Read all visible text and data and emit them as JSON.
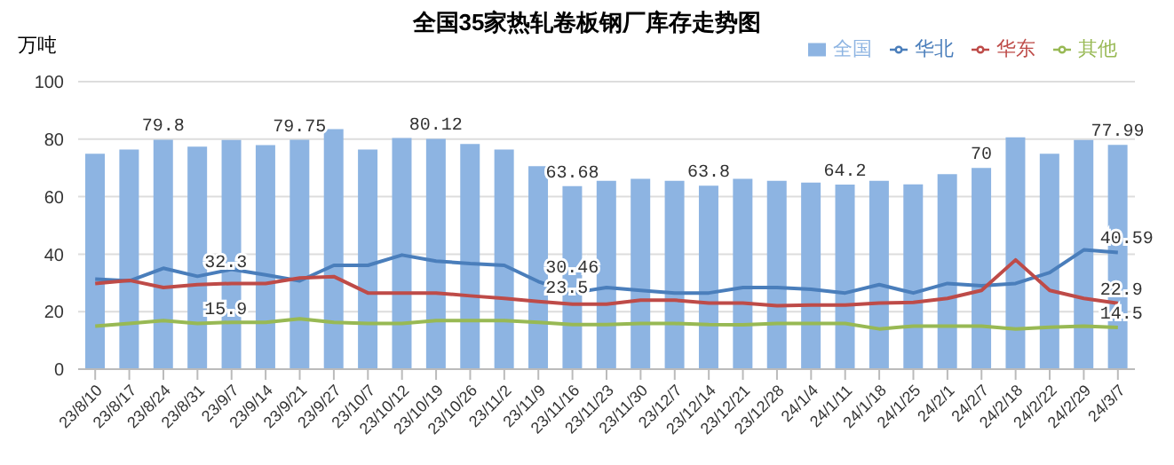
{
  "chart_data": {
    "type": "bar",
    "title": "全国35家热轧卷板钢厂库存走势图",
    "ylabel": "万吨",
    "categories": [
      "23/8/10",
      "23/8/17",
      "23/8/24",
      "23/8/31",
      "23/9/7",
      "23/9/14",
      "23/9/21",
      "23/9/27",
      "23/10/7",
      "23/10/12",
      "23/10/19",
      "23/10/26",
      "23/11/2",
      "23/11/9",
      "23/11/16",
      "23/11/23",
      "23/11/30",
      "23/12/7",
      "23/12/14",
      "23/12/21",
      "23/12/28",
      "24/1/4",
      "24/1/11",
      "24/1/18",
      "24/1/25",
      "24/2/1",
      "24/2/7",
      "24/2/18",
      "24/2/22",
      "24/2/29",
      "24/3/7"
    ],
    "series": [
      {
        "name": "全国",
        "color": "#8db4e2",
        "values": [
          74.9,
          76.4,
          79.8,
          77.4,
          79.7,
          77.9,
          79.75,
          83.5,
          76.4,
          80.4,
          80.12,
          78.3,
          76.4,
          70.6,
          63.68,
          65.5,
          66.2,
          65.5,
          63.8,
          66.2,
          65.5,
          64.9,
          64.2,
          65.5,
          64.3,
          67.8,
          70,
          80.6,
          74.9,
          79.7,
          77.99
        ],
        "value_labels": [
          null,
          null,
          "79.8",
          null,
          null,
          null,
          "79.75",
          null,
          null,
          null,
          "80.12",
          null,
          null,
          null,
          "63.68",
          null,
          null,
          null,
          "63.8",
          null,
          null,
          null,
          "64.2",
          null,
          null,
          null,
          "70",
          null,
          null,
          null,
          "77.99"
        ]
      },
      {
        "name": "华北",
        "type": "line",
        "color": "#4a7ebb",
        "values": [
          31.3,
          30.7,
          35.1,
          32.3,
          34.7,
          32.8,
          30.7,
          36.1,
          36.1,
          39.7,
          37.6,
          36.7,
          36.1,
          30.46,
          26.5,
          28.4,
          27.4,
          26.5,
          26.5,
          28.4,
          28.4,
          27.8,
          26.5,
          29.4,
          26.5,
          29.8,
          29,
          29.8,
          33.6,
          41.5,
          40.59
        ],
        "value_labels": [
          null,
          null,
          null,
          "32.3",
          null,
          null,
          null,
          null,
          null,
          null,
          null,
          null,
          null,
          "30.46",
          null,
          null,
          null,
          null,
          null,
          null,
          null,
          null,
          null,
          null,
          null,
          null,
          null,
          null,
          null,
          null,
          "40.59"
        ]
      },
      {
        "name": "华东",
        "type": "line",
        "color": "#be4b48",
        "values": [
          29.8,
          30.9,
          28.4,
          29.4,
          29.8,
          29.8,
          31.7,
          32.2,
          26.5,
          26.5,
          26.5,
          25.5,
          24.6,
          23.5,
          22.6,
          22.6,
          24,
          24,
          23,
          23,
          22.1,
          22.3,
          22.3,
          23,
          23.2,
          24.6,
          27.4,
          38,
          27.4,
          24.6,
          22.9
        ],
        "value_labels": [
          null,
          null,
          null,
          null,
          null,
          null,
          null,
          null,
          null,
          null,
          null,
          null,
          null,
          "23.5",
          null,
          null,
          null,
          null,
          null,
          null,
          null,
          null,
          null,
          null,
          null,
          null,
          null,
          null,
          null,
          null,
          "22.9"
        ]
      },
      {
        "name": "其他",
        "type": "line",
        "color": "#98b954",
        "values": [
          15,
          15.9,
          16.9,
          15.9,
          16.3,
          16.3,
          17.5,
          16.3,
          15.9,
          15.9,
          16.9,
          16.9,
          16.9,
          16.3,
          15.5,
          15.5,
          15.9,
          15.9,
          15.5,
          15.4,
          15.9,
          15.9,
          15.9,
          14,
          15,
          15,
          15,
          14,
          14.6,
          15,
          14.5
        ],
        "value_labels": [
          null,
          null,
          null,
          "15.9",
          null,
          null,
          null,
          null,
          null,
          null,
          null,
          null,
          null,
          null,
          null,
          null,
          null,
          null,
          null,
          null,
          null,
          null,
          null,
          null,
          null,
          null,
          null,
          null,
          null,
          null,
          "14.5"
        ]
      }
    ],
    "ylim": [
      0,
      100
    ],
    "yticks": [
      0,
      20,
      40,
      60,
      80,
      100
    ],
    "grid": "y",
    "legend": "top right",
    "marker": "none",
    "line_style": "solid"
  }
}
